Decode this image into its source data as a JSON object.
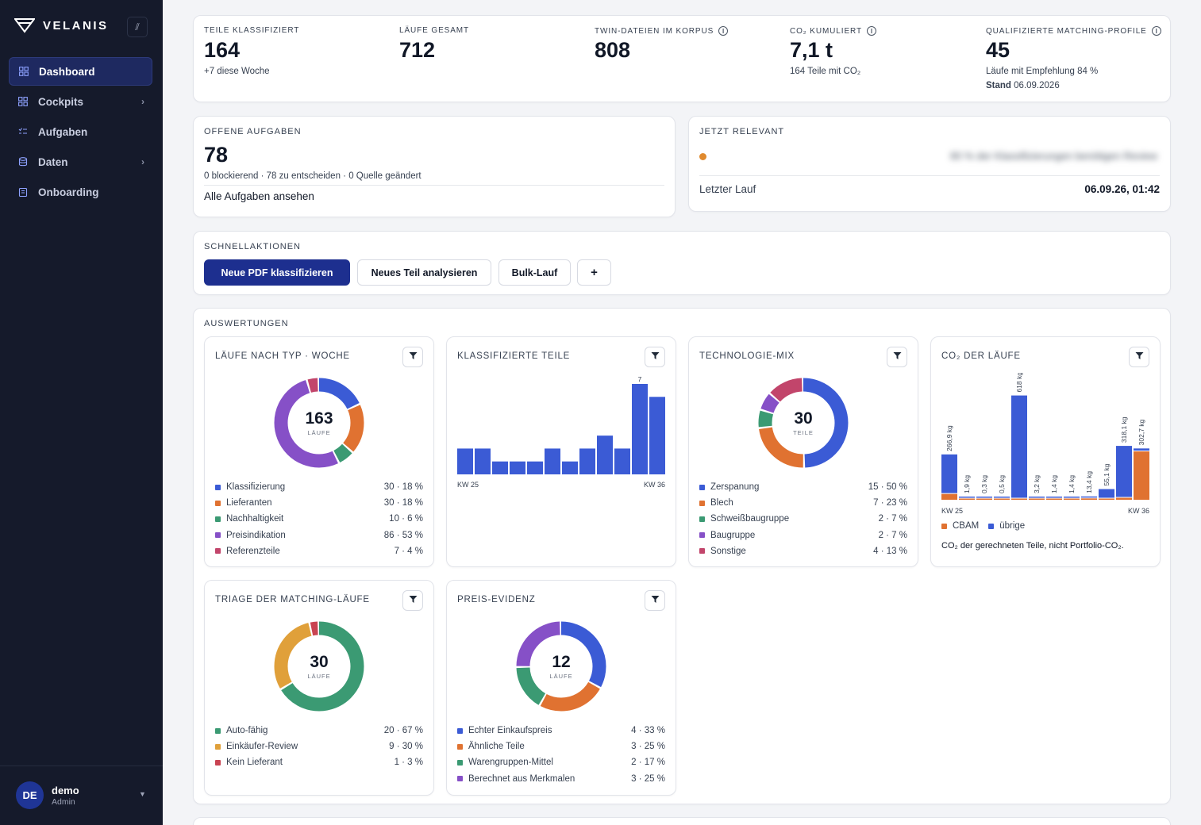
{
  "app": {
    "brand": "VELANIS"
  },
  "sidebar": {
    "items": [
      {
        "label": "Dashboard",
        "icon": "grid-icon",
        "active": true,
        "chevron": false
      },
      {
        "label": "Cockpits",
        "icon": "grid-icon",
        "active": false,
        "chevron": true
      },
      {
        "label": "Aufgaben",
        "icon": "checklist-icon",
        "active": false,
        "chevron": false
      },
      {
        "label": "Daten",
        "icon": "database-icon",
        "active": false,
        "chevron": true
      },
      {
        "label": "Onboarding",
        "icon": "clipboard-icon",
        "active": false,
        "chevron": false
      }
    ]
  },
  "user": {
    "initials": "DE",
    "name": "demo",
    "role": "Admin"
  },
  "kpis": [
    {
      "label": "Teile klassifiziert",
      "value": "164",
      "sub": "+7 diese Woche",
      "info": false
    },
    {
      "label": "Läufe gesamt",
      "value": "712",
      "sub": "",
      "info": false
    },
    {
      "label": "Twin-Dateien im Korpus",
      "value": "808",
      "sub": "",
      "info": true
    },
    {
      "label": "CO₂ kumuliert",
      "value": "7,1 t",
      "sub": "164 Teile mit CO₂",
      "info": true
    },
    {
      "label": "Qualifizierte Matching-Profile",
      "value": "45",
      "sub": "Läufe mit Empfehlung 84 %",
      "sub2_bold": "Stand",
      "sub2": "06.09.2026",
      "info": true
    }
  ],
  "open_tasks": {
    "label": "Offene Aufgaben",
    "value": "78",
    "summary": "0 blockierend · 78 zu entscheiden · 0 Quelle geändert",
    "link": "Alle Aufgaben ansehen"
  },
  "relevant": {
    "label": "Jetzt relevant",
    "blurred_text": "80 % der Klassifizierungen benötigen Review",
    "dot_color": "#e08a2e",
    "last_run_label": "Letzter Lauf",
    "last_run_value": "06.09.26, 01:42"
  },
  "quick": {
    "label": "Schnellaktionen",
    "buttons": [
      "Neue PDF klassifizieren",
      "Neues Teil analysieren",
      "Bulk-Lauf",
      "+"
    ]
  },
  "analytics": {
    "label": "Auswertungen"
  },
  "chart_data": [
    {
      "id": "laeufe",
      "type": "pie",
      "title": "LÄUFE NACH TYP · WOCHE",
      "center_value": "163",
      "center_label": "LÄUFE",
      "series": [
        {
          "name": "Klassifizierung",
          "value": 30,
          "display": "30 · 18 %",
          "color": "#3b5bd5"
        },
        {
          "name": "Lieferanten",
          "value": 30,
          "display": "30 · 18 %",
          "color": "#e07231"
        },
        {
          "name": "Nachhaltigkeit",
          "value": 10,
          "display": "10 · 6 %",
          "color": "#3b9a73"
        },
        {
          "name": "Preisindikation",
          "value": 86,
          "display": "86 · 53 %",
          "color": "#8650c7"
        },
        {
          "name": "Referenzteile",
          "value": 7,
          "display": "7 · 4 %",
          "color": "#c2456b"
        }
      ]
    },
    {
      "id": "klassifiziert",
      "type": "bar",
      "title": "KLASSIFIZIERTE TEILE",
      "x_first": "KW 25",
      "x_last": "KW 36",
      "peak_label": "7",
      "ylim": [
        0,
        7
      ],
      "values": [
        2,
        2,
        1,
        1,
        1,
        2,
        1,
        2,
        3,
        2,
        7,
        6
      ],
      "color": "#3b5bd5"
    },
    {
      "id": "technologie",
      "type": "pie",
      "title": "TECHNOLOGIE-MIX",
      "center_value": "30",
      "center_label": "TEILE",
      "series": [
        {
          "name": "Zerspanung",
          "value": 15,
          "display": "15 · 50 %",
          "color": "#3b5bd5"
        },
        {
          "name": "Blech",
          "value": 7,
          "display": "7 · 23 %",
          "color": "#e07231"
        },
        {
          "name": "Schweißbaugruppe",
          "value": 2,
          "display": "2 · 7 %",
          "color": "#3b9a73"
        },
        {
          "name": "Baugruppe",
          "value": 2,
          "display": "2 · 7 %",
          "color": "#8650c7"
        },
        {
          "name": "Sonstige",
          "value": 4,
          "display": "4 · 13 %",
          "color": "#c2456b"
        }
      ]
    },
    {
      "id": "co2",
      "type": "bar",
      "title": "CO₂ DER LÄUFE",
      "x_first": "KW 25",
      "x_last": "KW 36",
      "ylim": [
        0,
        650
      ],
      "series": [
        {
          "name": "CBAM",
          "color": "#e07231"
        },
        {
          "name": "übrige",
          "color": "#3b5bd5"
        }
      ],
      "bars": [
        {
          "label": "266,9 kg",
          "cbam": 35,
          "other": 232
        },
        {
          "label": "1,9 kg",
          "cbam": 0.6,
          "other": 1.3
        },
        {
          "label": "0,3 kg",
          "cbam": 0.1,
          "other": 0.2
        },
        {
          "label": "0,5 kg",
          "cbam": 0.1,
          "other": 0.4
        },
        {
          "label": "618 kg",
          "cbam": 5,
          "other": 613
        },
        {
          "label": "3,2 kg",
          "cbam": 1.2,
          "other": 2
        },
        {
          "label": "1,4 kg",
          "cbam": 1,
          "other": 0.4
        },
        {
          "label": "1,4 kg",
          "cbam": 0.7,
          "other": 0.7
        },
        {
          "label": "13,4 kg",
          "cbam": 8,
          "other": 5.4
        },
        {
          "label": "55,1 kg",
          "cbam": 3,
          "other": 52.1
        },
        {
          "label": "318,1 kg",
          "cbam": 12,
          "other": 306.1
        },
        {
          "label": "302,7 kg",
          "cbam": 290,
          "other": 12.7
        }
      ],
      "note": "CO₂ der gerechneten Teile, nicht Portfolio-CO₂."
    },
    {
      "id": "triage",
      "type": "pie",
      "title": "TRIAGE DER MATCHING-LÄUFE",
      "center_value": "30",
      "center_label": "LÄUFE",
      "series": [
        {
          "name": "Auto-fähig",
          "value": 20,
          "display": "20 · 67 %",
          "color": "#3b9a73"
        },
        {
          "name": "Einkäufer-Review",
          "value": 9,
          "display": "9 · 30 %",
          "color": "#e0a03a"
        },
        {
          "name": "Kein Lieferant",
          "value": 1,
          "display": "1 · 3 %",
          "color": "#c94452"
        }
      ]
    },
    {
      "id": "preis",
      "type": "pie",
      "title": "PREIS-EVIDENZ",
      "center_value": "12",
      "center_label": "LÄUFE",
      "series": [
        {
          "name": "Echter Einkaufspreis",
          "value": 4,
          "display": "4 · 33 %",
          "color": "#3b5bd5"
        },
        {
          "name": "Ähnliche Teile",
          "value": 3,
          "display": "3 · 25 %",
          "color": "#e07231"
        },
        {
          "name": "Warengruppen-Mittel",
          "value": 2,
          "display": "2 · 17 %",
          "color": "#3b9a73"
        },
        {
          "name": "Berechnet aus Merkmalen",
          "value": 3,
          "display": "3 · 25 %",
          "color": "#8650c7"
        }
      ]
    }
  ]
}
